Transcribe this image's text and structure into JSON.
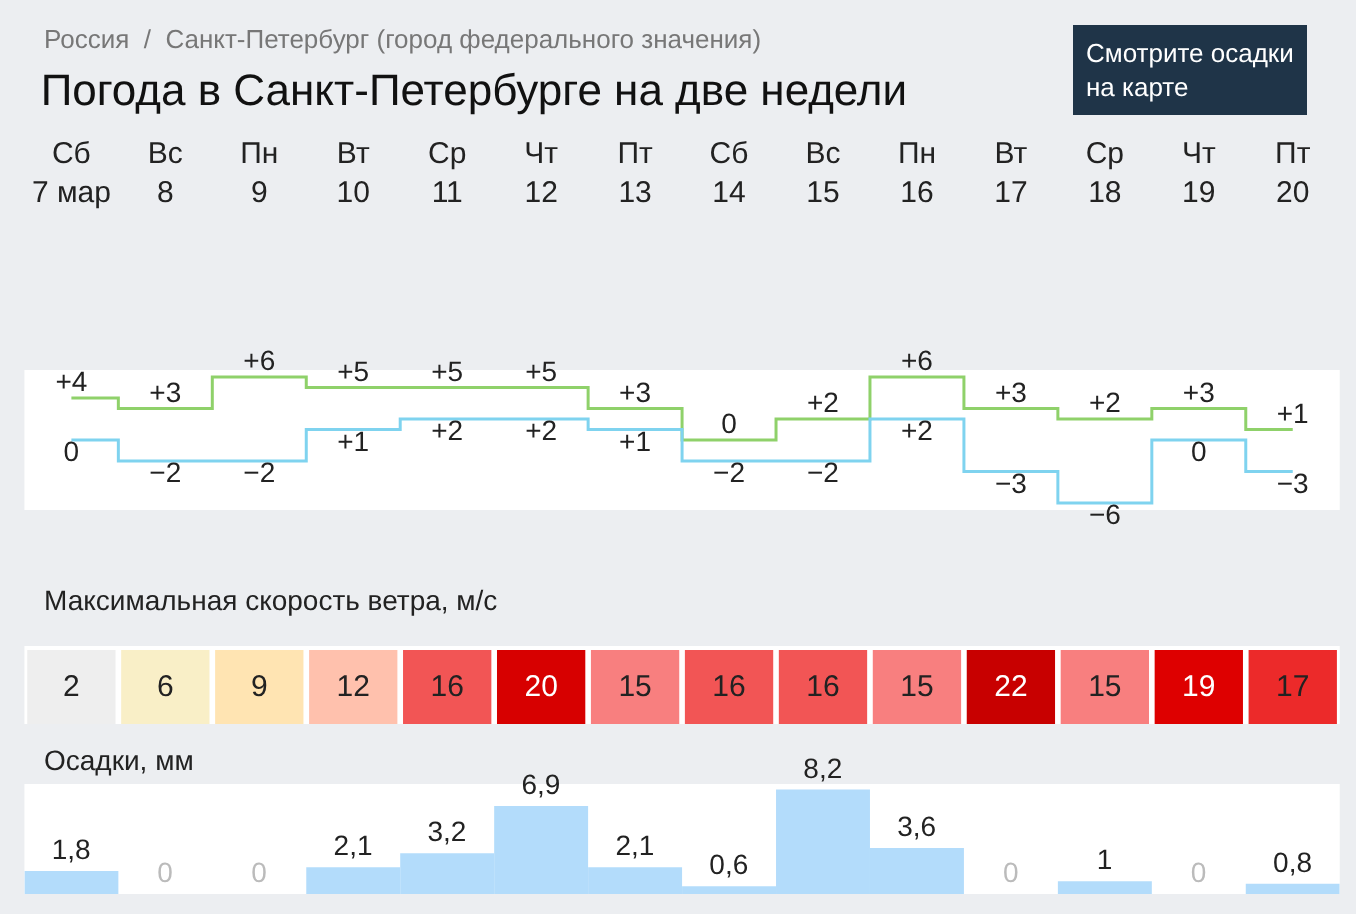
{
  "chart_data": [
    {
      "type": "step",
      "title": "Погода в Санкт-Петербурге на две недели",
      "annotations": [
        "Россия  /  Санкт-Петербург (город федерального значения)",
        "Смотрите осадки\nна карте"
      ],
      "categories": [
        "Сб\n7 мар",
        "Вс\n8",
        "Пн\n9",
        "Вт\n10",
        "Ср\n11",
        "Чт\n12",
        "Пт\n13",
        "Сб\n14",
        "Вс\n15",
        "Пн\n16",
        "Вт\n17",
        "Ср\n18",
        "Чт\n19",
        "Пт\n20"
      ],
      "series": [
        {
          "color": "#8fd16a",
          "values": [
            4,
            3,
            6,
            5,
            5,
            5,
            3,
            0,
            2,
            6,
            3,
            2,
            3,
            1
          ],
          "value_labels": [
            "+4",
            "+3",
            "+6",
            "+5",
            "+5",
            "+5",
            "+3",
            "0",
            "+2",
            "+6",
            "+3",
            "+2",
            "+3",
            "+1"
          ]
        },
        {
          "color": "#7fd3ef",
          "values": [
            0,
            -2,
            -2,
            1,
            2,
            2,
            1,
            -2,
            -2,
            2,
            -3,
            -6,
            0,
            -3
          ],
          "value_labels": [
            "0",
            "−2",
            "−2",
            "+1",
            "+2",
            "+2",
            "+1",
            "−2",
            "−2",
            "+2",
            "−3",
            "−6",
            "0",
            "−3"
          ]
        }
      ]
    },
    {
      "type": "other",
      "title": "Максимальная скорость ветра, м/с",
      "categories": [
        null,
        null,
        null,
        null,
        null,
        null,
        null,
        null,
        null,
        null,
        null,
        null,
        null,
        null
      ],
      "values": [
        2,
        6,
        9,
        12,
        16,
        20,
        15,
        16,
        16,
        15,
        22,
        15,
        19,
        17
      ],
      "data_labels": true
    },
    {
      "type": "bar",
      "title": "Осадки, мм",
      "categories": [
        null,
        null,
        null,
        null,
        null,
        null,
        null,
        null,
        null,
        null,
        null,
        null,
        null,
        null
      ],
      "color": "#b3dcfb",
      "values": [
        1.8,
        0,
        0,
        2.1,
        3.2,
        6.9,
        2.1,
        0.6,
        8.2,
        3.6,
        0,
        1,
        0,
        0.8
      ],
      "value_labels": [
        "1,8",
        "0",
        "0",
        "2,1",
        "3,2",
        "6,9",
        "2,1",
        "0,6",
        "8,2",
        "3,6",
        "0",
        "1",
        "0",
        "0,8"
      ]
    }
  ]
}
